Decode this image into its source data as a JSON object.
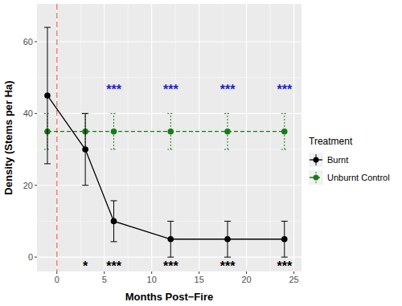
{
  "chart_data": {
    "type": "line",
    "x_label": "Months Post−Fire",
    "y_label": "Density (Stems per Ha)",
    "legend_title": "Treatment",
    "xlim": [
      -2.1,
      25.8
    ],
    "ylim": [
      -4,
      70.5
    ],
    "xticks": [
      0,
      5,
      10,
      15,
      20,
      25
    ],
    "yticks": [
      0,
      20,
      40,
      60
    ],
    "grid": true,
    "legend": "right",
    "x": [
      -1,
      3,
      6,
      12,
      18,
      24
    ],
    "series": [
      {
        "name": "Burnt",
        "color": "#000000",
        "marker": "circle",
        "line_style": "solid",
        "values": [
          45,
          30,
          10,
          5,
          5,
          5
        ],
        "error_low": [
          26,
          20,
          4.3,
          0,
          0,
          0
        ],
        "error_high": [
          64,
          40,
          15.7,
          10,
          10,
          10
        ]
      },
      {
        "name": "Unburnt Control",
        "color": "#1a7a1a",
        "marker": "circle",
        "line_style": "dashed",
        "values": [
          35,
          35,
          35,
          35,
          35,
          35
        ],
        "error_low": [
          30,
          30,
          30,
          30,
          30,
          30
        ],
        "error_high": [
          40,
          40,
          40,
          40,
          40,
          40
        ]
      }
    ],
    "reference_lines": [
      {
        "x": 0,
        "color": "#f8766d",
        "line_style": "dashed"
      }
    ],
    "annotations": [
      {
        "text": "***",
        "x": 6,
        "y": 47.5,
        "color": "#2323cc"
      },
      {
        "text": "***",
        "x": 12,
        "y": 47.5,
        "color": "#2323cc"
      },
      {
        "text": "***",
        "x": 18,
        "y": 47.5,
        "color": "#2323cc"
      },
      {
        "text": "***",
        "x": 24,
        "y": 47.5,
        "color": "#2323cc"
      },
      {
        "text": "*",
        "x": 3,
        "y": -1.8,
        "color": "#000000"
      },
      {
        "text": "***",
        "x": 6,
        "y": -1.8,
        "color": "#000000"
      },
      {
        "text": "***",
        "x": 12,
        "y": -1.8,
        "color": "#000000"
      },
      {
        "text": "***",
        "x": 18,
        "y": -1.8,
        "color": "#000000"
      },
      {
        "text": "***",
        "x": 24,
        "y": -1.8,
        "color": "#000000"
      }
    ]
  }
}
